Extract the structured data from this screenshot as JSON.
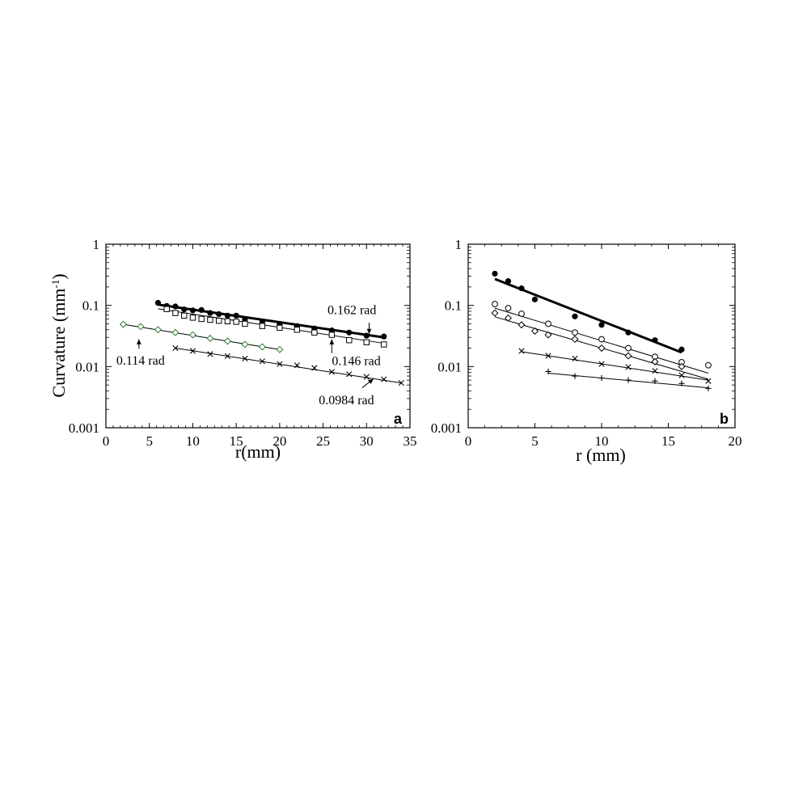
{
  "chart_data": [
    {
      "type": "scatter",
      "panel_label": "a",
      "xlabel": "r(mm)",
      "ylabel": "Curvature (mm",
      "ylabel_sup": "-1",
      "ylabel_close": ")",
      "xlim": [
        0,
        35
      ],
      "ylim": [
        0.001,
        1
      ],
      "yscale": "log",
      "x_ticks": [
        0,
        5,
        10,
        15,
        20,
        25,
        30,
        35
      ],
      "x_tick_labels": [
        "0",
        "5",
        "10",
        "15",
        "20",
        "25",
        "30",
        "35"
      ],
      "y_ticks": [
        0.001,
        0.01,
        0.1,
        1
      ],
      "y_tick_labels": [
        "0.001",
        "0.01",
        "0.1",
        "1"
      ],
      "grid": false,
      "series": [
        {
          "marker": "filled-circle",
          "color": "#000000",
          "line_width": 3,
          "x": [
            6,
            7,
            8,
            9,
            10,
            11,
            12,
            13,
            14,
            15,
            16,
            18,
            20,
            22,
            24,
            26,
            28,
            30,
            32
          ],
          "y": [
            0.11,
            0.098,
            0.096,
            0.086,
            0.083,
            0.084,
            0.075,
            0.072,
            0.068,
            0.068,
            0.059,
            0.054,
            0.05,
            0.046,
            0.042,
            0.039,
            0.036,
            0.032,
            0.031
          ],
          "fit": [
            [
              6,
              0.103
            ],
            [
              32,
              0.03
            ]
          ]
        },
        {
          "marker": "open-square",
          "color": "#000000",
          "line_width": 1,
          "x": [
            7,
            8,
            9,
            10,
            11,
            12,
            13,
            14,
            15,
            16,
            18,
            20,
            22,
            24,
            26,
            28,
            30,
            32
          ],
          "y": [
            0.087,
            0.075,
            0.068,
            0.063,
            0.06,
            0.058,
            0.056,
            0.055,
            0.054,
            0.05,
            0.046,
            0.043,
            0.04,
            0.036,
            0.033,
            0.027,
            0.025,
            0.023
          ],
          "fit": [
            [
              6,
              0.088
            ],
            [
              32,
              0.024
            ]
          ]
        },
        {
          "marker": "open-diamond",
          "color": "#2e7d32",
          "line_width": 1,
          "x": [
            2,
            4,
            6,
            8,
            10,
            12,
            14,
            16,
            18,
            20
          ],
          "y": [
            0.049,
            0.045,
            0.04,
            0.036,
            0.033,
            0.029,
            0.026,
            0.023,
            0.021,
            0.019
          ],
          "fit": [
            [
              2,
              0.049
            ],
            [
              20,
              0.019
            ]
          ]
        },
        {
          "marker": "x-cross",
          "color": "#000000",
          "line_width": 1,
          "x": [
            8,
            10,
            12,
            14,
            16,
            18,
            20,
            22,
            24,
            26,
            28,
            30,
            32,
            34
          ],
          "y": [
            0.02,
            0.018,
            0.016,
            0.0148,
            0.0135,
            0.0122,
            0.011,
            0.0105,
            0.0095,
            0.0082,
            0.0075,
            0.0068,
            0.0062,
            0.0054
          ],
          "fit": [
            [
              8,
              0.02
            ],
            [
              34,
              0.0054
            ]
          ]
        }
      ],
      "annotations": [
        {
          "text": "0.162 rad",
          "text_x": 25.5,
          "text_y": 0.072,
          "arrow": [
            [
              30.3,
              0.052
            ],
            [
              30.3,
              0.034
            ]
          ]
        },
        {
          "text": "0.146 rad",
          "text_x": 26,
          "text_y": 0.0105,
          "arrow": [
            [
              26,
              0.0165
            ],
            [
              26,
              0.028
            ]
          ]
        },
        {
          "text": "0.114 rad",
          "text_x": 1.2,
          "text_y": 0.0107,
          "arrow": [
            [
              3.8,
              0.0195
            ],
            [
              3.8,
              0.028
            ]
          ]
        },
        {
          "text": "0.0984 rad",
          "text_x": 24.5,
          "text_y": 0.0024,
          "arrow": [
            [
              29.5,
              0.0045
            ],
            [
              30.8,
              0.0063
            ]
          ]
        }
      ]
    },
    {
      "type": "scatter",
      "panel_label": "b",
      "xlabel": "r (mm)",
      "ylabel": "",
      "xlim": [
        0,
        20
      ],
      "ylim": [
        0.001,
        1
      ],
      "yscale": "log",
      "x_ticks": [
        0,
        5,
        10,
        15,
        20
      ],
      "x_tick_labels": [
        "0",
        "5",
        "10",
        "15",
        "20"
      ],
      "y_ticks": [
        0.001,
        0.01,
        0.1,
        1
      ],
      "y_tick_labels": [
        "0.001",
        "0.01",
        "0.1",
        "1"
      ],
      "grid": false,
      "series": [
        {
          "marker": "filled-circle",
          "color": "#000000",
          "line_width": 3,
          "x": [
            2,
            3,
            4,
            5,
            8,
            10,
            12,
            14,
            16
          ],
          "y": [
            0.33,
            0.25,
            0.19,
            0.125,
            0.066,
            0.048,
            0.036,
            0.027,
            0.019
          ],
          "fit": [
            [
              2,
              0.27
            ],
            [
              16,
              0.017
            ]
          ]
        },
        {
          "marker": "open-circle",
          "color": "#000000",
          "line_width": 1,
          "x": [
            2,
            3,
            4,
            6,
            8,
            10,
            12,
            14,
            16,
            18
          ],
          "y": [
            0.105,
            0.09,
            0.073,
            0.05,
            0.036,
            0.028,
            0.02,
            0.0145,
            0.0118,
            0.0105
          ],
          "fit": [
            [
              2,
              0.09
            ],
            [
              18,
              0.0078
            ]
          ]
        },
        {
          "marker": "open-diamond",
          "color": "#000000",
          "line_width": 1,
          "x": [
            2,
            3,
            4,
            5,
            6,
            8,
            10,
            12,
            14,
            16
          ],
          "y": [
            0.075,
            0.062,
            0.048,
            0.038,
            0.033,
            0.028,
            0.02,
            0.015,
            0.012,
            0.01
          ],
          "fit": [
            [
              2,
              0.065
            ],
            [
              18,
              0.0062
            ]
          ]
        },
        {
          "marker": "x-cross",
          "color": "#000000",
          "line_width": 1,
          "x": [
            4,
            6,
            8,
            10,
            12,
            14,
            16,
            18
          ],
          "y": [
            0.018,
            0.015,
            0.0135,
            0.011,
            0.0098,
            0.0085,
            0.0072,
            0.0058
          ],
          "fit": [
            [
              4,
              0.0175
            ],
            [
              18,
              0.006
            ]
          ]
        },
        {
          "marker": "plus",
          "color": "#000000",
          "line_width": 1,
          "x": [
            6,
            8,
            10,
            12,
            14,
            16,
            18
          ],
          "y": [
            0.0083,
            0.007,
            0.0065,
            0.006,
            0.0058,
            0.0053,
            0.0044
          ],
          "fit": [
            [
              6,
              0.0078
            ],
            [
              18,
              0.0045
            ]
          ]
        }
      ],
      "annotations": []
    }
  ]
}
